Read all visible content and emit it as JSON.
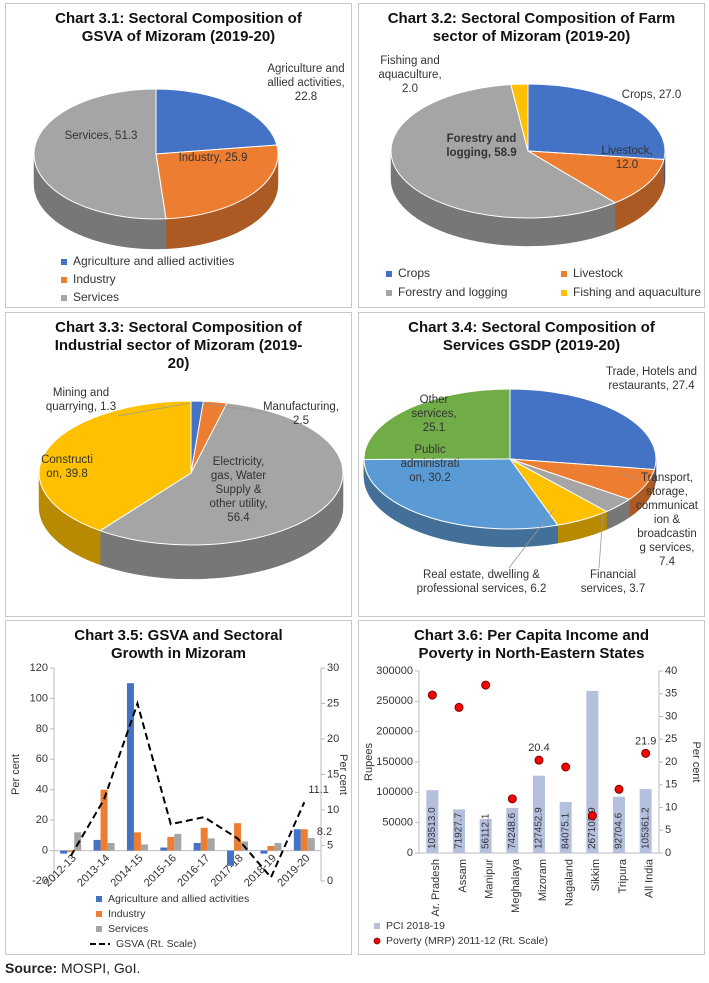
{
  "chart_data": [
    {
      "type": "pie",
      "title": "Chart 3.1: Sectoral Composition of GSVA of Mizoram (2019-20)",
      "categories": [
        "Agriculture and allied activities",
        "Industry",
        "Services"
      ],
      "values": [
        22.8,
        25.9,
        51.3
      ],
      "value_labels": [
        "Agriculture and allied activities, 22.8",
        "Industry, 25.9",
        "Services, 51.3"
      ],
      "colors": [
        "#4472c4",
        "#ed7d31",
        "#a5a5a5"
      ],
      "legend": "bottom"
    },
    {
      "type": "pie",
      "title": "Chart 3.2: Sectoral Composition of Farm sector of Mizoram (2019-20)",
      "categories": [
        "Crops",
        "Livestock",
        "Forestry and logging",
        "Fishing and aquaculture"
      ],
      "values": [
        27.0,
        12.0,
        58.9,
        2.0
      ],
      "value_labels": [
        "Crops, 27.0",
        "Livestock, 12.0",
        "Forestry and logging, 58.9",
        "Fishing and aquaculture, 2.0"
      ],
      "colors": [
        "#4472c4",
        "#ed7d31",
        "#a5a5a5",
        "#ffc000"
      ],
      "legend": "bottom"
    },
    {
      "type": "pie",
      "title": "Chart 3.3: Sectoral Composition of Industrial sector of Mizoram (2019-20)",
      "categories": [
        "Mining and quarrying",
        "Manufacturing",
        "Electricity, gas, Water Supply & other utility",
        "Construction"
      ],
      "values": [
        1.3,
        2.5,
        56.4,
        39.8
      ],
      "value_labels": [
        "Mining and quarrying, 1.3",
        "Manufacturing, 2.5",
        "Electricity, gas, Water Supply & other utility, 56.4",
        "Construction, 39.8"
      ],
      "colors": [
        "#4472c4",
        "#ed7d31",
        "#a5a5a5",
        "#ffc000"
      ]
    },
    {
      "type": "pie",
      "title": "Chart 3.4: Sectoral Composition of Services GSDP (2019-20)",
      "categories": [
        "Trade, Hotels and restaurants",
        "Transport, storage, communication & broadcasting services",
        "Financial services",
        "Real estate, dwelling & professional services",
        "Public administration",
        "Other services"
      ],
      "values": [
        27.4,
        7.4,
        3.7,
        6.2,
        30.2,
        25.1
      ],
      "value_labels": [
        "Trade, Hotels and restaurants, 27.4",
        "Transport, storage, communication & broadcasting services, 7.4",
        "Financial services, 3.7",
        "Real estate, dwelling & professional services, 6.2",
        "Public administration, 30.2",
        "Other services, 25.1"
      ],
      "colors": [
        "#4472c4",
        "#ed7d31",
        "#a5a5a5",
        "#ffc000",
        "#5b9bd5",
        "#70ad47"
      ]
    },
    {
      "type": "bar",
      "title": "Chart 3.5: GSVA and Sectoral Growth in Mizoram",
      "categories": [
        "2012-13",
        "2013-14",
        "2014-15",
        "2015-16",
        "2016-17",
        "2017-18",
        "2018-19",
        "2019-20"
      ],
      "series": [
        {
          "name": "Agriculture and allied activities",
          "type": "bar",
          "color": "#4472c4",
          "values": [
            -2,
            7,
            110,
            2,
            5,
            -10,
            -2,
            14
          ]
        },
        {
          "name": "Industry",
          "type": "bar",
          "color": "#ed7d31",
          "values": [
            -1,
            40,
            12,
            9,
            15,
            18,
            3,
            14
          ]
        },
        {
          "name": "Services",
          "type": "bar",
          "color": "#a5a5a5",
          "values": [
            12,
            5,
            4,
            11,
            8,
            6,
            5,
            8.2
          ],
          "value_labels": [
            null,
            null,
            null,
            null,
            null,
            null,
            null,
            "8.2"
          ]
        },
        {
          "name": "GSVA (Rt. Scale)",
          "type": "line",
          "dash": true,
          "axis": "y2",
          "color": "#000000",
          "values": [
            3.5,
            11.5,
            25,
            8,
            9,
            6,
            0.5,
            11.1
          ],
          "value_labels": [
            null,
            null,
            null,
            null,
            null,
            null,
            null,
            "11.1"
          ]
        }
      ],
      "ylabel": "Per cent",
      "y2label": "Per cent",
      "ylim": [
        -20,
        120
      ],
      "yticks": [
        -20,
        0,
        20,
        40,
        60,
        80,
        100,
        120
      ],
      "y2lim": [
        0,
        30
      ],
      "y2ticks": [
        0,
        5,
        10,
        15,
        20,
        25,
        30
      ],
      "legend": "bottom"
    },
    {
      "type": "bar",
      "title": "Chart 3.6: Per Capita Income and Poverty in North-Eastern States",
      "categories": [
        "Ar. Pradesh",
        "Assam",
        "Manipur",
        "Meghalaya",
        "Mizoram",
        "Nagaland",
        "Sikkim",
        "Tripura",
        "All India"
      ],
      "series": [
        {
          "name": "PCI 2018-19",
          "type": "bar",
          "color": "#b4c0dd",
          "values": [
            103513.0,
            71927.7,
            56112.1,
            74248.6,
            127452.9,
            84075.1,
            267103.9,
            92704.6,
            105361.2
          ],
          "value_labels": [
            "103513.0",
            "71927.7",
            "56112.1",
            "74248.6",
            "127452.9",
            "84075.1",
            "267103.9",
            "92704.6",
            "105361.2"
          ]
        },
        {
          "name": "Poverty (MRP) 2011-12 (Rt. Scale)",
          "type": "dot",
          "axis": "y2",
          "color": "#ff0000",
          "values": [
            34.7,
            32.0,
            36.9,
            11.9,
            20.4,
            18.9,
            8.2,
            14.0,
            21.9
          ],
          "value_labels": [
            null,
            null,
            null,
            null,
            "20.4",
            null,
            null,
            null,
            "21.9"
          ]
        }
      ],
      "ylabel": "Rupees",
      "y2label": "Per cent",
      "ylim": [
        0,
        300000
      ],
      "yticks": [
        0,
        50000,
        100000,
        150000,
        200000,
        250000,
        300000
      ],
      "y2lim": [
        0,
        40
      ],
      "y2ticks": [
        0,
        5,
        10,
        15,
        20,
        25,
        30,
        35,
        40
      ],
      "legend": "bottom"
    }
  ],
  "source": {
    "label": "Source:",
    "text": "MOSPI, GoI."
  }
}
